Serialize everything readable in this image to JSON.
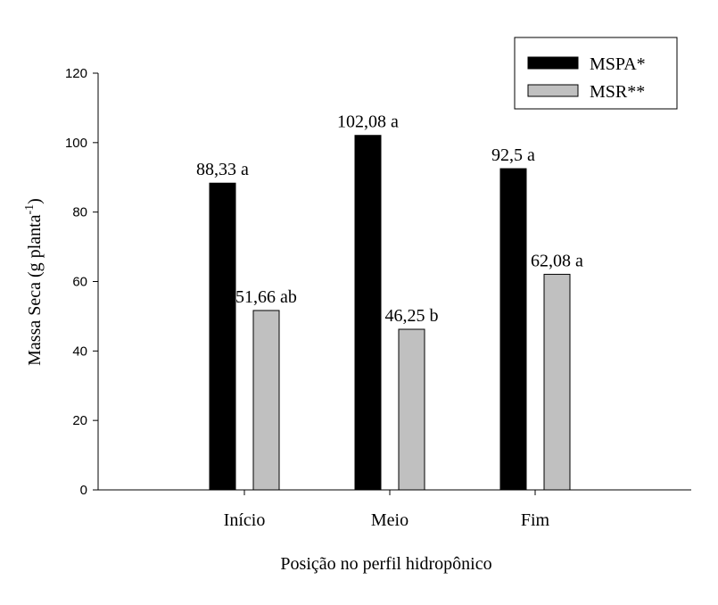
{
  "chart_data": {
    "type": "bar",
    "title": "",
    "xlabel": "Posição no perfil hidropônico",
    "ylabel": "Massa Seca (g planta",
    "ylabel_superscript": "-1",
    "ylabel_close": ")",
    "categories": [
      "Início",
      "Meio",
      "Fim"
    ],
    "ylim": [
      0,
      120
    ],
    "yticks": [
      0,
      20,
      40,
      60,
      80,
      100,
      120
    ],
    "grid": false,
    "legend_position": "top-right",
    "series": [
      {
        "name": "MSPA*",
        "color": "#000000",
        "values": [
          88.33,
          102.08,
          92.5
        ],
        "labels": [
          "88,33 a",
          "102,08 a",
          "92,5 a"
        ]
      },
      {
        "name": "MSR**",
        "color": "#c0c0c0",
        "values": [
          51.66,
          46.25,
          62.08
        ],
        "labels": [
          "51,66 ab",
          "46,25 b",
          "62,08 a"
        ]
      }
    ]
  }
}
